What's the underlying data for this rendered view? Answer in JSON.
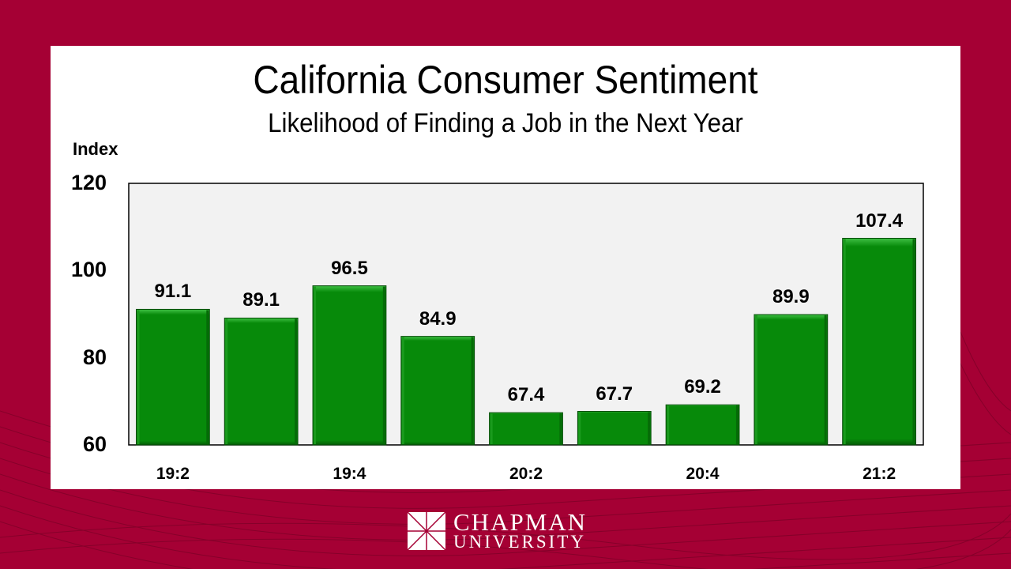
{
  "colors": {
    "background": "#a50034",
    "bar": "#078a0a",
    "plot_bg": "#f2f2f2"
  },
  "logo": {
    "line1": "CHAPMAN",
    "line2": "UNIVERSITY"
  },
  "chart_data": {
    "type": "bar",
    "title": "California Consumer Sentiment",
    "subtitle": "Likelihood of Finding a Job in the Next Year",
    "xlabel": "",
    "ylabel": "Index",
    "ylim": [
      60,
      120
    ],
    "yticks": [
      "120",
      "100",
      "80",
      "60"
    ],
    "ytick_values": [
      120,
      100,
      80,
      60
    ],
    "categories": [
      "19:2",
      "",
      "19:4",
      "",
      "20:2",
      "",
      "20:4",
      "",
      "21:2"
    ],
    "values": [
      91.1,
      89.1,
      96.5,
      84.9,
      67.4,
      67.7,
      69.2,
      89.9,
      107.4
    ],
    "data_labels": [
      "91.1",
      "89.1",
      "96.5",
      "84.9",
      "67.4",
      "67.7",
      "69.2",
      "89.9",
      "107.4"
    ],
    "grid": false,
    "legend": "none"
  }
}
